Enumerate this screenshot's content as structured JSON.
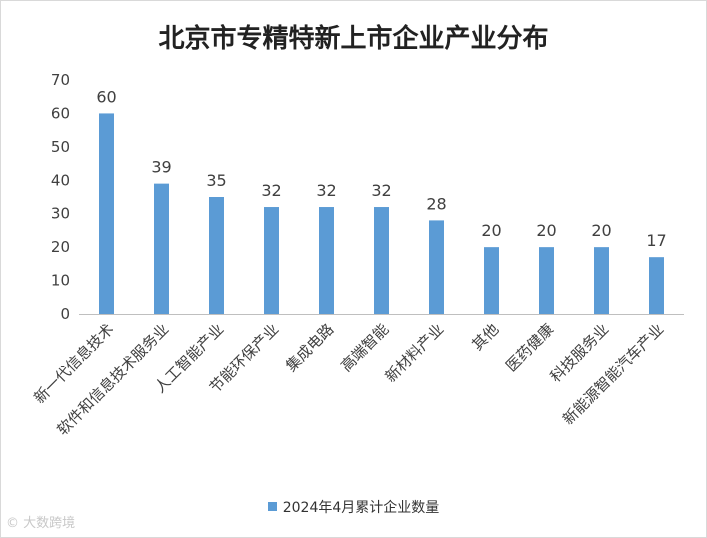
{
  "chart_data": {
    "type": "bar",
    "title": "北京市专精特新上市企业产业分布",
    "categories": [
      "新一代信息技术",
      "软件和信息技术服务业",
      "人工智能产业",
      "节能环保产业",
      "集成电路",
      "高端智能",
      "新材料产业",
      "其他",
      "医药健康",
      "科技服务业",
      "新能源智能汽车产业"
    ],
    "series": [
      {
        "name": "2024年4月累计企业数量",
        "values": [
          60,
          39,
          35,
          32,
          32,
          32,
          28,
          20,
          20,
          20,
          17
        ]
      }
    ],
    "ylim": [
      0,
      70
    ],
    "yticks": [
      0,
      10,
      20,
      30,
      40,
      50,
      60,
      70
    ],
    "grid": false,
    "legend_position": "bottom",
    "bar_color": "#5b9bd5"
  },
  "watermark": "© 大数跨境"
}
